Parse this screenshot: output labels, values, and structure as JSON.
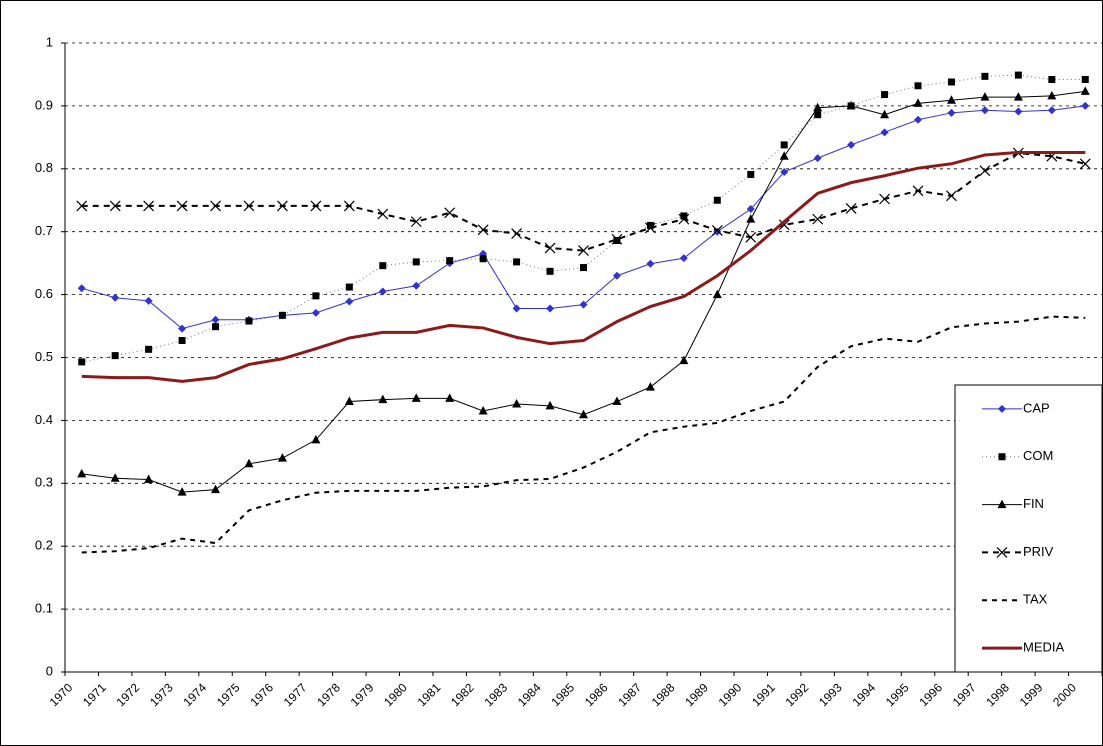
{
  "chart_data": {
    "type": "line",
    "categories": [
      "1970",
      "1971",
      "1972",
      "1973",
      "1974",
      "1975",
      "1976",
      "1977",
      "1978",
      "1979",
      "1980",
      "1981",
      "1982",
      "1983",
      "1984",
      "1985",
      "1986",
      "1987",
      "1988",
      "1989",
      "1990",
      "1991",
      "1992",
      "1993",
      "1994",
      "1995",
      "1996",
      "1997",
      "1998",
      "1999",
      "2000"
    ],
    "ylim": [
      0,
      1
    ],
    "yticks": [
      0,
      0.1,
      0.2,
      0.3,
      0.4,
      0.5,
      0.6,
      0.7,
      0.8,
      0.9,
      1
    ],
    "grid": true,
    "legend": "right",
    "series": [
      {
        "name": "CAP",
        "color": "#3333cc",
        "marker": "diamond",
        "dash": "none",
        "width": 1,
        "values": [
          0.61,
          0.595,
          0.59,
          0.546,
          0.56,
          0.56,
          0.567,
          0.571,
          0.589,
          0.605,
          0.614,
          0.65,
          0.665,
          0.578,
          0.578,
          0.584,
          0.63,
          0.649,
          0.658,
          0.7,
          0.736,
          0.795,
          0.817,
          0.838,
          0.858,
          0.878,
          0.889,
          0.893,
          0.891,
          0.893,
          0.9
        ]
      },
      {
        "name": "COM",
        "color": "#000000",
        "marker": "square",
        "dash": "1 3",
        "width": 1,
        "values": [
          0.493,
          0.503,
          0.513,
          0.527,
          0.549,
          0.558,
          0.567,
          0.598,
          0.612,
          0.646,
          0.652,
          0.654,
          0.657,
          0.652,
          0.637,
          0.643,
          0.686,
          0.71,
          0.725,
          0.75,
          0.791,
          0.838,
          0.886,
          0.9,
          0.918,
          0.932,
          0.938,
          0.947,
          0.949,
          0.942,
          0.942
        ]
      },
      {
        "name": "FIN",
        "color": "#000000",
        "marker": "triangle",
        "dash": "none",
        "width": 1,
        "values": [
          0.315,
          0.308,
          0.306,
          0.286,
          0.29,
          0.331,
          0.34,
          0.369,
          0.43,
          0.433,
          0.435,
          0.435,
          0.415,
          0.426,
          0.423,
          0.409,
          0.43,
          0.453,
          0.495,
          0.6,
          0.72,
          0.82,
          0.897,
          0.9,
          0.886,
          0.904,
          0.909,
          0.914,
          0.914,
          0.916,
          0.923
        ]
      },
      {
        "name": "PRIV",
        "color": "#000000",
        "marker": "x",
        "dash": "6 5",
        "width": 2,
        "values": [
          0.741,
          0.741,
          0.741,
          0.741,
          0.741,
          0.741,
          0.741,
          0.741,
          0.741,
          0.728,
          0.716,
          0.73,
          0.703,
          0.697,
          0.674,
          0.67,
          0.688,
          0.706,
          0.72,
          0.702,
          0.691,
          0.711,
          0.72,
          0.737,
          0.752,
          0.765,
          0.757,
          0.797,
          0.825,
          0.82,
          0.808
        ]
      },
      {
        "name": "TAX",
        "color": "#000000",
        "marker": "none",
        "dash": "5 5",
        "width": 2,
        "values": [
          0.19,
          0.192,
          0.197,
          0.212,
          0.205,
          0.257,
          0.273,
          0.285,
          0.288,
          0.288,
          0.288,
          0.293,
          0.295,
          0.305,
          0.307,
          0.325,
          0.35,
          0.381,
          0.39,
          0.396,
          0.415,
          0.43,
          0.485,
          0.518,
          0.53,
          0.525,
          0.548,
          0.554,
          0.557,
          0.565,
          0.563
        ]
      },
      {
        "name": "MEDIA",
        "color": "#8b1a1a",
        "marker": "none",
        "dash": "none",
        "width": 3,
        "values": [
          0.47,
          0.468,
          0.468,
          0.462,
          0.468,
          0.489,
          0.498,
          0.514,
          0.531,
          0.54,
          0.54,
          0.551,
          0.547,
          0.532,
          0.522,
          0.527,
          0.557,
          0.581,
          0.597,
          0.63,
          0.67,
          0.716,
          0.761,
          0.778,
          0.789,
          0.801,
          0.808,
          0.822,
          0.826,
          0.826,
          0.826
        ]
      }
    ]
  }
}
